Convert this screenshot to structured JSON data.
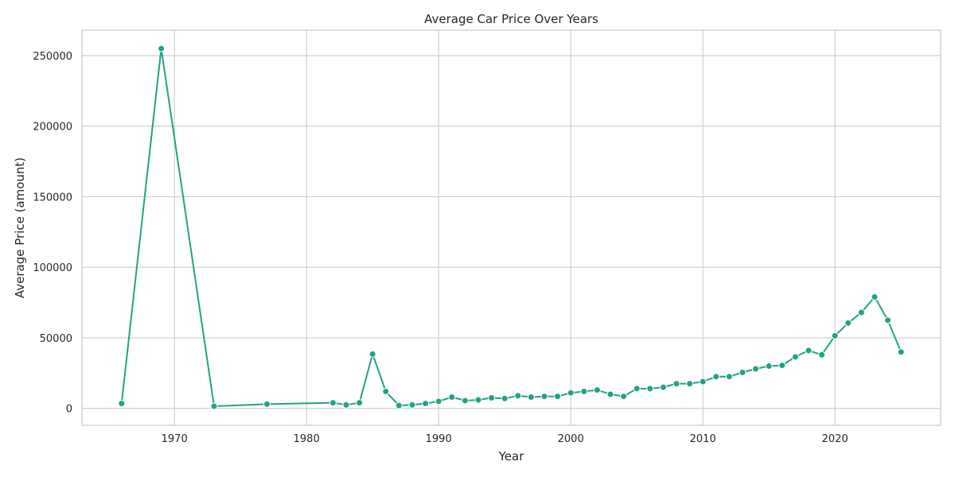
{
  "chart_data": {
    "type": "line",
    "title": "Average Car Price Over Years",
    "xlabel": "Year",
    "ylabel": "Average Price (amount)",
    "xlim": [
      1963,
      2028
    ],
    "ylim": [
      -12000,
      268000
    ],
    "xticks": [
      1970,
      1980,
      1990,
      2000,
      2010,
      2020
    ],
    "yticks": [
      0,
      50000,
      100000,
      150000,
      200000,
      250000
    ],
    "grid": true,
    "color": "#20a386",
    "series": [
      {
        "x": [
          1966,
          1969,
          1973,
          1977,
          1982,
          1983,
          1984,
          1985,
          1986,
          1987,
          1988,
          1989,
          1990,
          1991,
          1992,
          1993,
          1994,
          1995,
          1996,
          1997,
          1998,
          1999,
          2000,
          2001,
          2002,
          2003,
          2004,
          2005,
          2006,
          2007,
          2008,
          2009,
          2010,
          2011,
          2012,
          2013,
          2014,
          2015,
          2016,
          2017,
          2018,
          2019,
          2020,
          2021,
          2022,
          2023,
          2024,
          2025
        ],
        "values": [
          3500,
          255000,
          1500,
          3000,
          4000,
          2500,
          4000,
          38500,
          12000,
          2000,
          2500,
          3500,
          5000,
          8000,
          5500,
          6000,
          7500,
          7000,
          9000,
          8000,
          8500,
          8500,
          11000,
          12000,
          13000,
          10000,
          8500,
          14000,
          14000,
          15000,
          17500,
          17500,
          19000,
          22500,
          22500,
          25500,
          28000,
          30000,
          30500,
          36500,
          41000,
          38000,
          51500,
          60500,
          68000,
          79000,
          62500,
          40000
        ]
      }
    ]
  }
}
